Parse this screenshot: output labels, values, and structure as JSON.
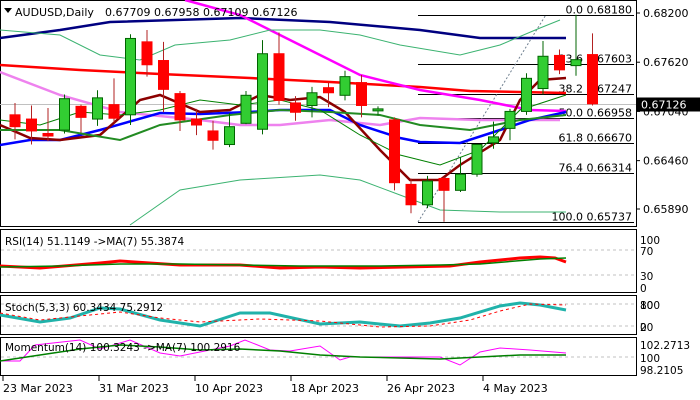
{
  "header": {
    "symbol": "AUDUSD,Daily",
    "ohlc": "0.67709 0.67958 0.67109 0.67126"
  },
  "price_axis": {
    "ticks": [
      "0.68200",
      "0.67620",
      "0.67040",
      "0.66460",
      "0.65890"
    ],
    "current_price": "0.67126"
  },
  "fibonacci": [
    {
      "label": "0.0 0.68180",
      "price": 0.6818
    },
    {
      "label": "23.6 0.67603",
      "price": 0.67603
    },
    {
      "label": "38.2 0.67247",
      "price": 0.67247
    },
    {
      "label": "50.0 0.66958",
      "price": 0.66958
    },
    {
      "label": "61.8 0.66670",
      "price": 0.6667
    },
    {
      "label": "76.4 0.66314",
      "price": 0.66314
    },
    {
      "label": "100.0 0.65737",
      "price": 0.65737
    }
  ],
  "rsi": {
    "label": "RSI(14) 51.1149  ->MA(7) 55.3874",
    "ticks": [
      "100",
      "70",
      "30",
      "0"
    ]
  },
  "stoch": {
    "label": "Stoch(5,3,3) 60.3434 75.2912",
    "ticks": [
      "80",
      "100",
      "20",
      "0"
    ]
  },
  "momentum": {
    "label": "Momentum(14) 100.3243  ->MA(7) 100.2916",
    "ticks": [
      "102.2713",
      "100",
      "98.2105"
    ]
  },
  "date_axis": [
    "23 Mar 2023",
    "31 Mar 2023",
    "10 Apr 2023",
    "18 Apr 2023",
    "26 Apr 2023",
    "4 May 2023"
  ],
  "colors": {
    "bull": "#32cd32",
    "bear": "#ff0000",
    "ma_fast": "#8b0000",
    "ma_blue": "#0000ff",
    "ma_navy": "#000080",
    "ma_red": "#ff0000",
    "ma_magenta": "#ff00ff",
    "ma_violet": "#ee82ee"
  },
  "chart_data": {
    "type": "candlestick",
    "title": "AUDUSD,Daily",
    "ohlc_last": {
      "open": 0.67709,
      "high": 0.67958,
      "low": 0.67109,
      "close": 0.67126
    },
    "candles": [
      {
        "o": 0.67,
        "h": 0.6714,
        "l": 0.6671,
        "c": 0.6686
      },
      {
        "o": 0.6695,
        "h": 0.6711,
        "l": 0.6665,
        "c": 0.6681
      },
      {
        "o": 0.6678,
        "h": 0.6708,
        "l": 0.6669,
        "c": 0.6675
      },
      {
        "o": 0.6682,
        "h": 0.6724,
        "l": 0.6678,
        "c": 0.6719
      },
      {
        "o": 0.671,
        "h": 0.6712,
        "l": 0.6679,
        "c": 0.6697
      },
      {
        "o": 0.6695,
        "h": 0.6729,
        "l": 0.6687,
        "c": 0.672
      },
      {
        "o": 0.6712,
        "h": 0.6743,
        "l": 0.6691,
        "c": 0.6696
      },
      {
        "o": 0.67,
        "h": 0.6795,
        "l": 0.6688,
        "c": 0.679
      },
      {
        "o": 0.6786,
        "h": 0.68,
        "l": 0.6745,
        "c": 0.6759
      },
      {
        "o": 0.6764,
        "h": 0.6786,
        "l": 0.6703,
        "c": 0.673
      },
      {
        "o": 0.6725,
        "h": 0.6728,
        "l": 0.6681,
        "c": 0.6694
      },
      {
        "o": 0.6695,
        "h": 0.6707,
        "l": 0.6676,
        "c": 0.6688
      },
      {
        "o": 0.6681,
        "h": 0.6693,
        "l": 0.6659,
        "c": 0.667
      },
      {
        "o": 0.6665,
        "h": 0.6702,
        "l": 0.6662,
        "c": 0.6686
      },
      {
        "o": 0.669,
        "h": 0.6728,
        "l": 0.6689,
        "c": 0.6723
      },
      {
        "o": 0.6683,
        "h": 0.6788,
        "l": 0.6677,
        "c": 0.6772
      },
      {
        "o": 0.6772,
        "h": 0.6797,
        "l": 0.6712,
        "c": 0.6717
      },
      {
        "o": 0.6714,
        "h": 0.6722,
        "l": 0.6693,
        "c": 0.6703
      },
      {
        "o": 0.6711,
        "h": 0.6733,
        "l": 0.6697,
        "c": 0.6726
      },
      {
        "o": 0.6732,
        "h": 0.6738,
        "l": 0.6709,
        "c": 0.6726
      },
      {
        "o": 0.6723,
        "h": 0.6752,
        "l": 0.6717,
        "c": 0.6745
      },
      {
        "o": 0.6738,
        "h": 0.6747,
        "l": 0.6697,
        "c": 0.6711
      },
      {
        "o": 0.6707,
        "h": 0.671,
        "l": 0.6699,
        "c": 0.6707
      },
      {
        "o": 0.6694,
        "h": 0.6697,
        "l": 0.6611,
        "c": 0.662
      },
      {
        "o": 0.6618,
        "h": 0.6625,
        "l": 0.6584,
        "c": 0.6594
      },
      {
        "o": 0.6594,
        "h": 0.6628,
        "l": 0.659,
        "c": 0.6622
      },
      {
        "o": 0.6625,
        "h": 0.6627,
        "l": 0.6574,
        "c": 0.6611
      },
      {
        "o": 0.6611,
        "h": 0.665,
        "l": 0.6609,
        "c": 0.663
      },
      {
        "o": 0.663,
        "h": 0.6663,
        "l": 0.6627,
        "c": 0.6665
      },
      {
        "o": 0.6667,
        "h": 0.6692,
        "l": 0.666,
        "c": 0.6674
      },
      {
        "o": 0.6684,
        "h": 0.6707,
        "l": 0.667,
        "c": 0.6704
      },
      {
        "o": 0.6704,
        "h": 0.6749,
        "l": 0.67,
        "c": 0.6743
      },
      {
        "o": 0.6731,
        "h": 0.6787,
        "l": 0.6724,
        "c": 0.6769
      },
      {
        "o": 0.677,
        "h": 0.6777,
        "l": 0.6748,
        "c": 0.6753
      },
      {
        "o": 0.6758,
        "h": 0.6818,
        "l": 0.6746,
        "c": 0.6765
      },
      {
        "o": 0.6771,
        "h": 0.6796,
        "l": 0.6711,
        "c": 0.6713
      }
    ],
    "indicators": {
      "rsi14": 51.1149,
      "rsi_ma7": 55.3874,
      "stoch_main": 60.3434,
      "stoch_signal": 75.2912,
      "momentum14": 100.3243,
      "momentum_ma7": 100.2916
    },
    "xlabel": "",
    "ylabel": "",
    "ylim": [
      0.6572,
      0.6835
    ],
    "grid": false
  }
}
